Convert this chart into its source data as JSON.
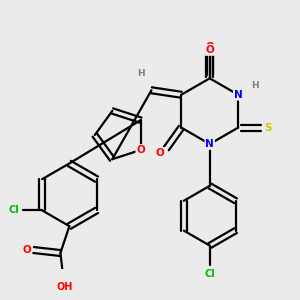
{
  "bg_color": "#ebebeb",
  "atom_colors": {
    "O": "#ff0000",
    "N": "#0000ff",
    "S": "#cccc00",
    "Cl": "#00bb00",
    "C": "#000000",
    "H": "#808080"
  }
}
